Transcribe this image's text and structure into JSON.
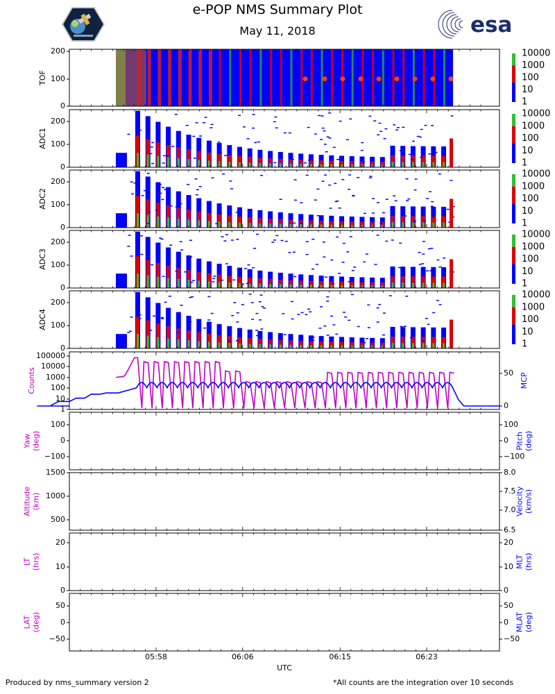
{
  "header": {
    "title": "e-POP NMS Summary Plot",
    "date": "May 11, 2018",
    "esa_logo_text": "esa"
  },
  "footer": {
    "left": "Produced by nms_summary version 2",
    "right": "*All counts are the integration over 10 seconds"
  },
  "colors": {
    "magenta": "#c000c0",
    "blue": "#0000ff",
    "spec_low": "#0000ff",
    "spec_mid": "#e00000",
    "spec_high": "#30c030"
  },
  "chart_data": [
    {
      "type": "heatmap",
      "ylabel": "TOF",
      "yticks": [
        "0",
        "100",
        "200"
      ],
      "ylim": [
        0,
        210
      ],
      "colorbar_ticks": [
        "10000",
        "1000",
        "100",
        "10",
        "1"
      ]
    },
    {
      "type": "heatmap",
      "ylabel": "ADC1",
      "yticks": [
        "0",
        "100",
        "200"
      ],
      "ylim": [
        0,
        255
      ],
      "colorbar_ticks": [
        "10000",
        "1000",
        "100",
        "10",
        "1"
      ]
    },
    {
      "type": "heatmap",
      "ylabel": "ADC2",
      "yticks": [
        "0",
        "100",
        "200"
      ],
      "ylim": [
        0,
        255
      ],
      "colorbar_ticks": [
        "10000",
        "1000",
        "100",
        "10",
        "1"
      ]
    },
    {
      "type": "heatmap",
      "ylabel": "ADC3",
      "yticks": [
        "0",
        "100",
        "200"
      ],
      "ylim": [
        0,
        255
      ],
      "colorbar_ticks": [
        "10000",
        "1000",
        "100",
        "10",
        "1"
      ]
    },
    {
      "type": "heatmap",
      "ylabel": "ADC4",
      "yticks": [
        "0",
        "100",
        "200"
      ],
      "ylim": [
        0,
        255
      ],
      "colorbar_ticks": [
        "10000",
        "1000",
        "100",
        "10",
        "1"
      ]
    },
    {
      "type": "line",
      "ylabel_left": "Counts",
      "ylabel_right": "MCP",
      "yticks_left": [
        "100000",
        "10000",
        "1000",
        "100",
        "10",
        "1"
      ],
      "yticks_right": [
        "50",
        "0"
      ],
      "series": [
        {
          "name": "Counts",
          "color": "#c000c0",
          "axis": "left-log",
          "x_minutes": [
            54.3,
            54.9,
            55.0,
            55.2,
            56.0,
            56.3
          ],
          "values": [
            1000,
            1200,
            1200,
            2000,
            70000,
            70000
          ]
        },
        {
          "name": "MCP",
          "color": "#0000ff",
          "axis": "right",
          "x_minutes": [
            47,
            48.2,
            49.0,
            50.0,
            50.6,
            51.4,
            52.0,
            52.8,
            53.4,
            54.5,
            55.6,
            56.2
          ],
          "values": [
            0,
            0,
            7,
            7,
            12,
            12,
            18,
            18,
            20,
            20,
            25,
            28
          ]
        }
      ]
    },
    {
      "type": "line",
      "ylabel_left": "Yaw\n(deg)",
      "ylabel_right": "Pitch\n(deg)",
      "yticks_left": [
        "100",
        "0",
        "−100"
      ],
      "yticks_right": [
        "100",
        "0",
        "−100"
      ],
      "series": []
    },
    {
      "type": "line",
      "ylabel_left": "Altitude\n(km)",
      "ylabel_right": "Velocity\n(km/s)",
      "yticks_left": [
        "1500",
        "1000",
        "500"
      ],
      "yticks_right": [
        "8.0",
        "7.5",
        "7.0",
        "6.5"
      ],
      "series": []
    },
    {
      "type": "line",
      "ylabel_left": "LT\n(hrs)",
      "ylabel_right": "MLT\n(hrs)",
      "yticks_left": [
        "20",
        "10",
        "0"
      ],
      "yticks_right": [
        "20",
        "10",
        "0"
      ],
      "series": []
    },
    {
      "type": "line",
      "ylabel_left": "LAT\n(deg)",
      "ylabel_right": "MLAT\n(deg)",
      "yticks_left": [
        "50",
        "0",
        "−50"
      ],
      "yticks_right": [
        "50",
        "0",
        "−50"
      ],
      "series": []
    }
  ],
  "x_axis": {
    "label": "UTC",
    "ticks": [
      "05:58",
      "06:06",
      "06:15",
      "06:23"
    ]
  }
}
